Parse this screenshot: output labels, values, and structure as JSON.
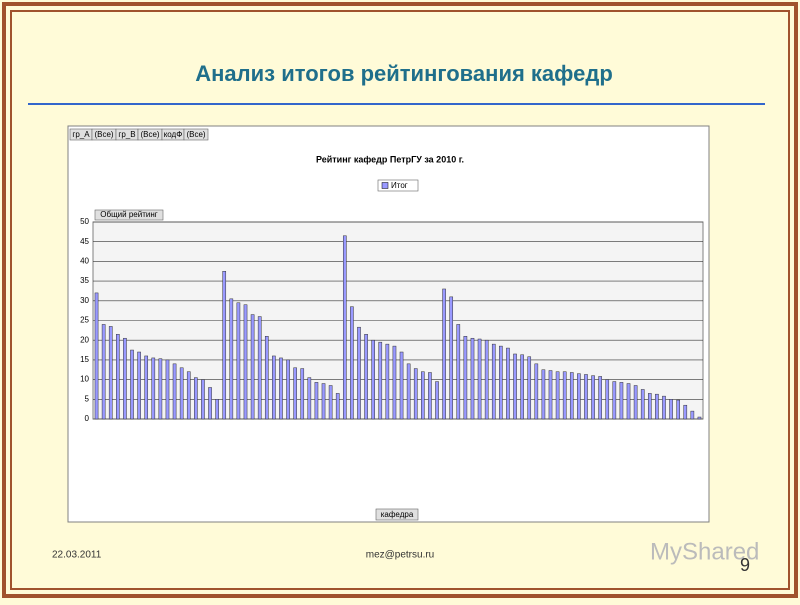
{
  "slide": {
    "title": "Анализ итогов рейтингования кафедр",
    "date": "22.03.2011",
    "email": "mez@petrsu.ru",
    "page_number": "9",
    "watermark": "MyShared"
  },
  "filters": [
    {
      "name": "гр_А",
      "value": "(Все)"
    },
    {
      "name": "гр_В",
      "value": "(Все)"
    },
    {
      "name": "кодФ",
      "value": "(Все)"
    }
  ],
  "chart_data": {
    "type": "bar",
    "title": "Рейтинг кафедр ПетрГУ за 2010 г.",
    "y_label": "Общий рейтинг",
    "x_label": "кафедра",
    "categories": [
      null,
      null,
      null,
      null,
      null,
      null,
      null,
      null,
      null,
      null,
      null,
      null,
      null,
      null,
      null,
      null,
      null,
      null,
      null,
      null,
      null,
      null,
      null,
      null,
      null,
      null,
      null,
      null,
      null,
      null,
      null,
      null,
      null,
      null,
      null,
      null,
      null,
      null,
      null,
      null,
      null,
      null,
      null,
      null,
      null,
      null,
      null,
      null,
      null,
      null,
      null,
      null,
      null,
      null,
      null,
      null,
      null,
      null,
      null,
      null,
      null,
      null,
      null,
      null,
      null,
      null,
      null,
      null,
      null,
      null,
      null,
      null,
      null,
      null,
      null,
      null,
      null,
      null,
      null,
      null,
      null,
      null,
      null,
      null,
      null,
      null
    ],
    "series": [
      {
        "name": "Итог",
        "color": "#9999ff",
        "values": [
          32,
          24,
          23.5,
          21.5,
          20.5,
          17.5,
          17,
          16,
          15.5,
          15.3,
          15,
          14,
          13,
          12,
          10.5,
          10,
          8,
          5,
          37.5,
          30.5,
          29.5,
          29,
          26.5,
          26,
          21,
          16,
          15.5,
          15,
          13,
          12.8,
          10.5,
          9.3,
          9,
          8.5,
          6.5,
          46.5,
          28.5,
          23.3,
          21.5,
          20,
          19.5,
          19,
          18.5,
          17,
          14,
          12.8,
          12,
          11.8,
          9.5,
          33,
          31,
          24,
          21,
          20.5,
          20.3,
          20,
          19,
          18.5,
          18,
          16.5,
          16.3,
          15.8,
          14,
          12.5,
          12.3,
          12,
          12,
          11.8,
          11.5,
          11.3,
          11,
          10.8,
          10,
          9.5,
          9.3,
          9,
          8.5,
          7.5,
          6.5,
          6.3,
          5.8,
          5,
          4.8,
          3.5,
          2,
          0.5
        ]
      }
    ],
    "ylim": [
      0,
      50
    ],
    "yticks": [
      0,
      5,
      10,
      15,
      20,
      25,
      30,
      35,
      40,
      45,
      50
    ],
    "grid": true,
    "legend": "top"
  }
}
